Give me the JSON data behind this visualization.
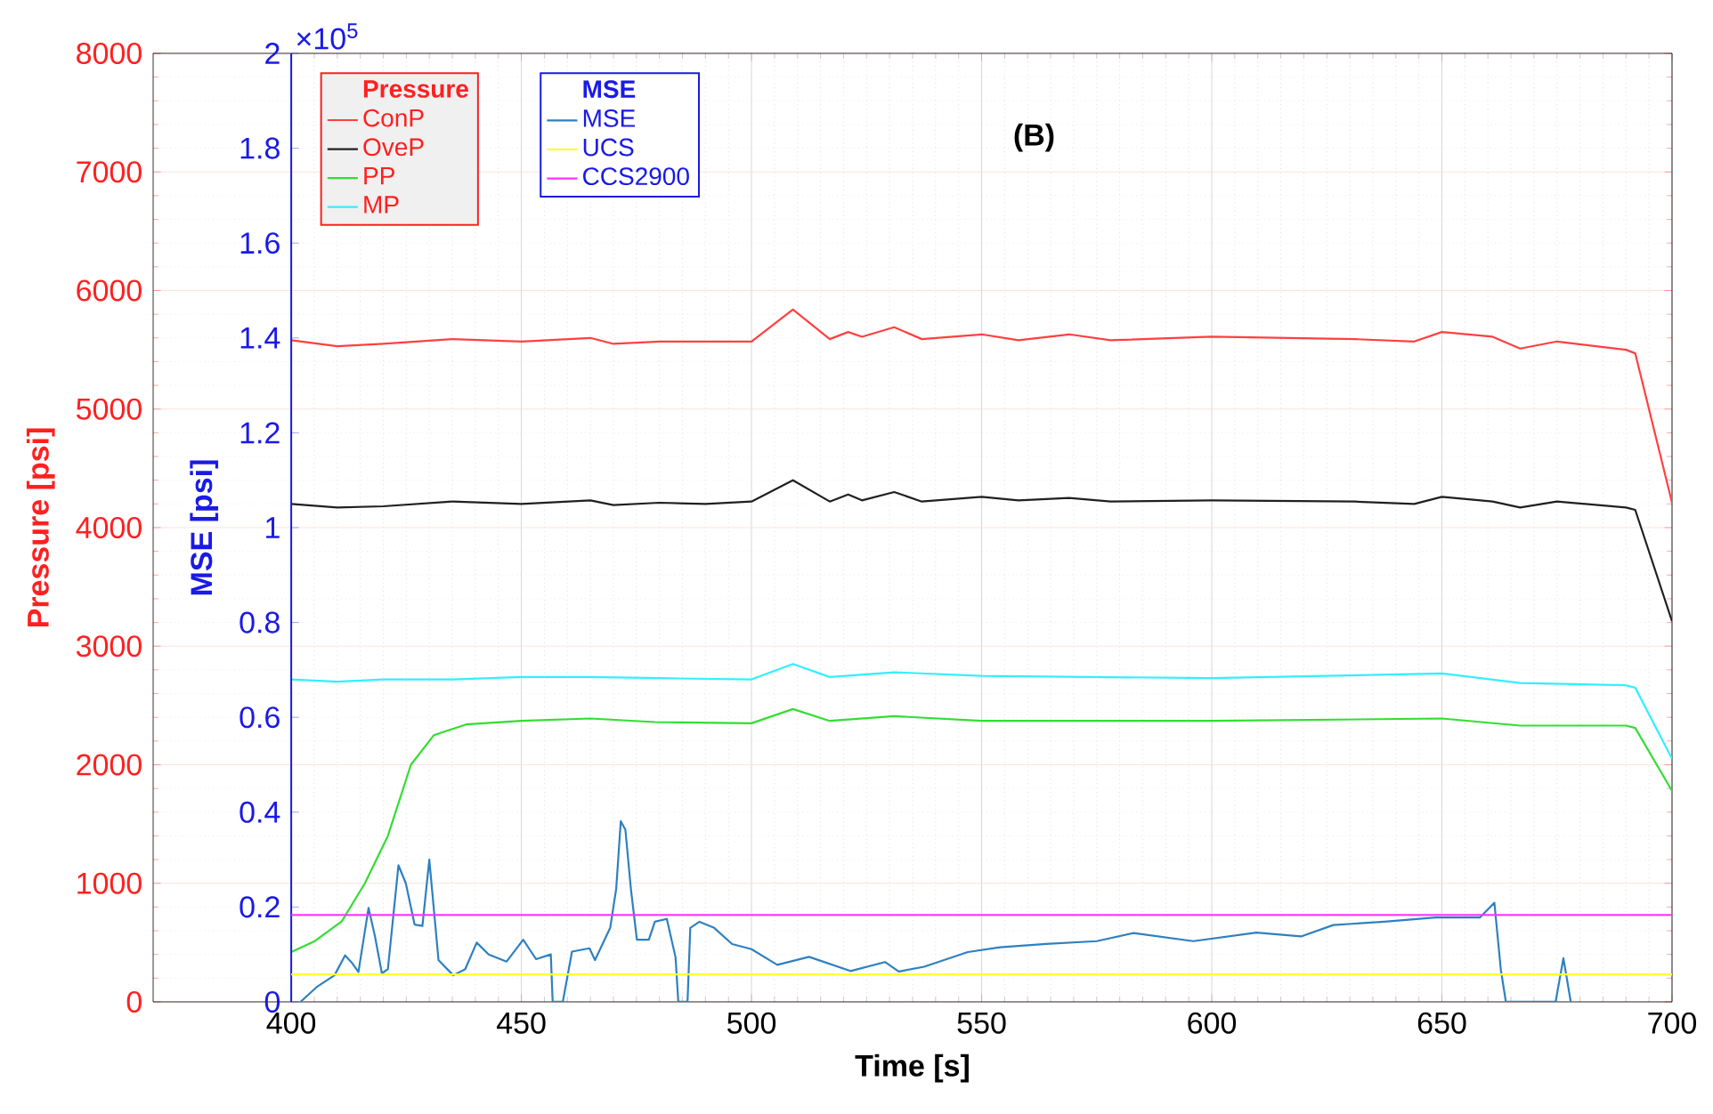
{
  "chart_data": {
    "type": "line",
    "title": "(B)",
    "xlabel": "Time [s]",
    "ylabel": "Pressure [psi]",
    "y2label": "MSE [psi]",
    "xlim": [
      370,
      700
    ],
    "xticks": [
      400,
      450,
      500,
      550,
      600,
      650,
      700
    ],
    "ylim": [
      0,
      8000
    ],
    "yticks": [
      0,
      1000,
      2000,
      3000,
      4000,
      5000,
      6000,
      7000,
      8000
    ],
    "y2lim": [
      0,
      2
    ],
    "y2ticks": [
      0,
      0.2,
      0.4,
      0.6,
      0.8,
      1,
      1.2,
      1.4,
      1.6,
      1.8,
      2
    ],
    "grid": true,
    "legend": "top left",
    "legend_title": "Pressure",
    "annotations": [
      "×10$^{5}$",
      "MSE"
    ],
    "series": [
      {
        "name": "ConP",
        "color": "#ff4040",
        "x": [
          400,
          410,
          420,
          435,
          450,
          465,
          470,
          480,
          490,
          500,
          509,
          517,
          521,
          524,
          531,
          537,
          550,
          558,
          569,
          578,
          600,
          631,
          644,
          650,
          661,
          667,
          675,
          690,
          692,
          700
        ],
        "values": [
          5580,
          5530,
          5550,
          5590,
          5570,
          5600,
          5550,
          5570,
          5570,
          5570,
          5840,
          5590,
          5650,
          5610,
          5690,
          5590,
          5630,
          5580,
          5630,
          5580,
          5610,
          5590,
          5570,
          5650,
          5610,
          5510,
          5570,
          5500,
          5470,
          4210
        ]
      },
      {
        "name": "OveP",
        "color": "#202020",
        "x": [
          400,
          410,
          420,
          435,
          450,
          465,
          470,
          480,
          490,
          500,
          509,
          517,
          521,
          524,
          531,
          537,
          550,
          558,
          569,
          578,
          600,
          631,
          644,
          650,
          661,
          667,
          675,
          690,
          692,
          700
        ],
        "values": [
          4200,
          4170,
          4180,
          4220,
          4200,
          4230,
          4190,
          4210,
          4200,
          4220,
          4400,
          4220,
          4280,
          4230,
          4300,
          4220,
          4260,
          4230,
          4250,
          4220,
          4230,
          4220,
          4200,
          4260,
          4220,
          4170,
          4220,
          4170,
          4150,
          3210
        ]
      },
      {
        "name": "PP",
        "color": "#33dd33",
        "x": [
          400,
          405,
          411,
          416,
          421,
          426,
          431,
          438,
          450,
          465,
          479,
          500,
          509,
          517,
          531,
          550,
          600,
          650,
          667,
          690,
          692,
          700
        ],
        "values": [
          420,
          510,
          680,
          1000,
          1400,
          2000,
          2250,
          2340,
          2370,
          2390,
          2360,
          2350,
          2470,
          2370,
          2410,
          2370,
          2370,
          2390,
          2330,
          2330,
          2310,
          1780
        ]
      },
      {
        "name": "MP",
        "color": "#33eeff",
        "x": [
          400,
          410,
          420,
          435,
          450,
          465,
          480,
          500,
          509,
          517,
          531,
          550,
          600,
          650,
          667,
          690,
          692,
          700
        ],
        "values": [
          2720,
          2700,
          2720,
          2720,
          2740,
          2740,
          2730,
          2720,
          2850,
          2740,
          2780,
          2750,
          2730,
          2770,
          2690,
          2670,
          2650,
          2050
        ]
      },
      {
        "name": "MSE",
        "color": "#2f80c0",
        "axis": "y2",
        "x": [
          402,
          405.5,
          409.4,
          411.7,
          413.3,
          414.6,
          416.8,
          418.2,
          419.7,
          421,
          423.3,
          424.9,
          426.8,
          428.5,
          430,
          432,
          435.2,
          437.8,
          440.3,
          442.9,
          446.8,
          450.4,
          453.2,
          456.4,
          456.8,
          459,
          461,
          464.8,
          466,
          469.3,
          470.6,
          471.6,
          472.6,
          473.8,
          475.1,
          477.7,
          479,
          481.6,
          483.5,
          484.1,
          486.1,
          486.7,
          488.7,
          491.9,
          495.8,
          500,
          505.6,
          512.5,
          521.5,
          529,
          532,
          537.5,
          547,
          554,
          564,
          575,
          583,
          596,
          609.7,
          619.4,
          626.4,
          637.5,
          648.6,
          658.3,
          661.4,
          662.8,
          663.9,
          674.7,
          676.4,
          678
        ],
        "values": [
          0,
          0.031,
          0.056,
          0.098,
          0.081,
          0.063,
          0.198,
          0.138,
          0.06,
          0.069,
          0.288,
          0.25,
          0.163,
          0.16,
          0.3,
          0.088,
          0.056,
          0.069,
          0.125,
          0.1,
          0.085,
          0.131,
          0.09,
          0.1,
          0,
          0,
          0.106,
          0.113,
          0.088,
          0.156,
          0.238,
          0.381,
          0.363,
          0.238,
          0.131,
          0.131,
          0.169,
          0.175,
          0.094,
          0,
          0,
          0.156,
          0.169,
          0.156,
          0.122,
          0.111,
          0.078,
          0.095,
          0.065,
          0.084,
          0.064,
          0.074,
          0.105,
          0.115,
          0.122,
          0.128,
          0.145,
          0.128,
          0.146,
          0.138,
          0.162,
          0.169,
          0.178,
          0.178,
          0.209,
          0.068,
          0,
          0,
          0.092,
          0
        ]
      },
      {
        "name": "UCS",
        "color": "#ffff33",
        "axis": "y2",
        "x": [
          400,
          700
        ],
        "values": [
          0.058,
          0.058
        ]
      },
      {
        "name": "CCS2900",
        "color": "#ff33ff",
        "axis": "y2",
        "x": [
          400,
          700
        ],
        "values": [
          0.183,
          0.183
        ]
      }
    ]
  }
}
